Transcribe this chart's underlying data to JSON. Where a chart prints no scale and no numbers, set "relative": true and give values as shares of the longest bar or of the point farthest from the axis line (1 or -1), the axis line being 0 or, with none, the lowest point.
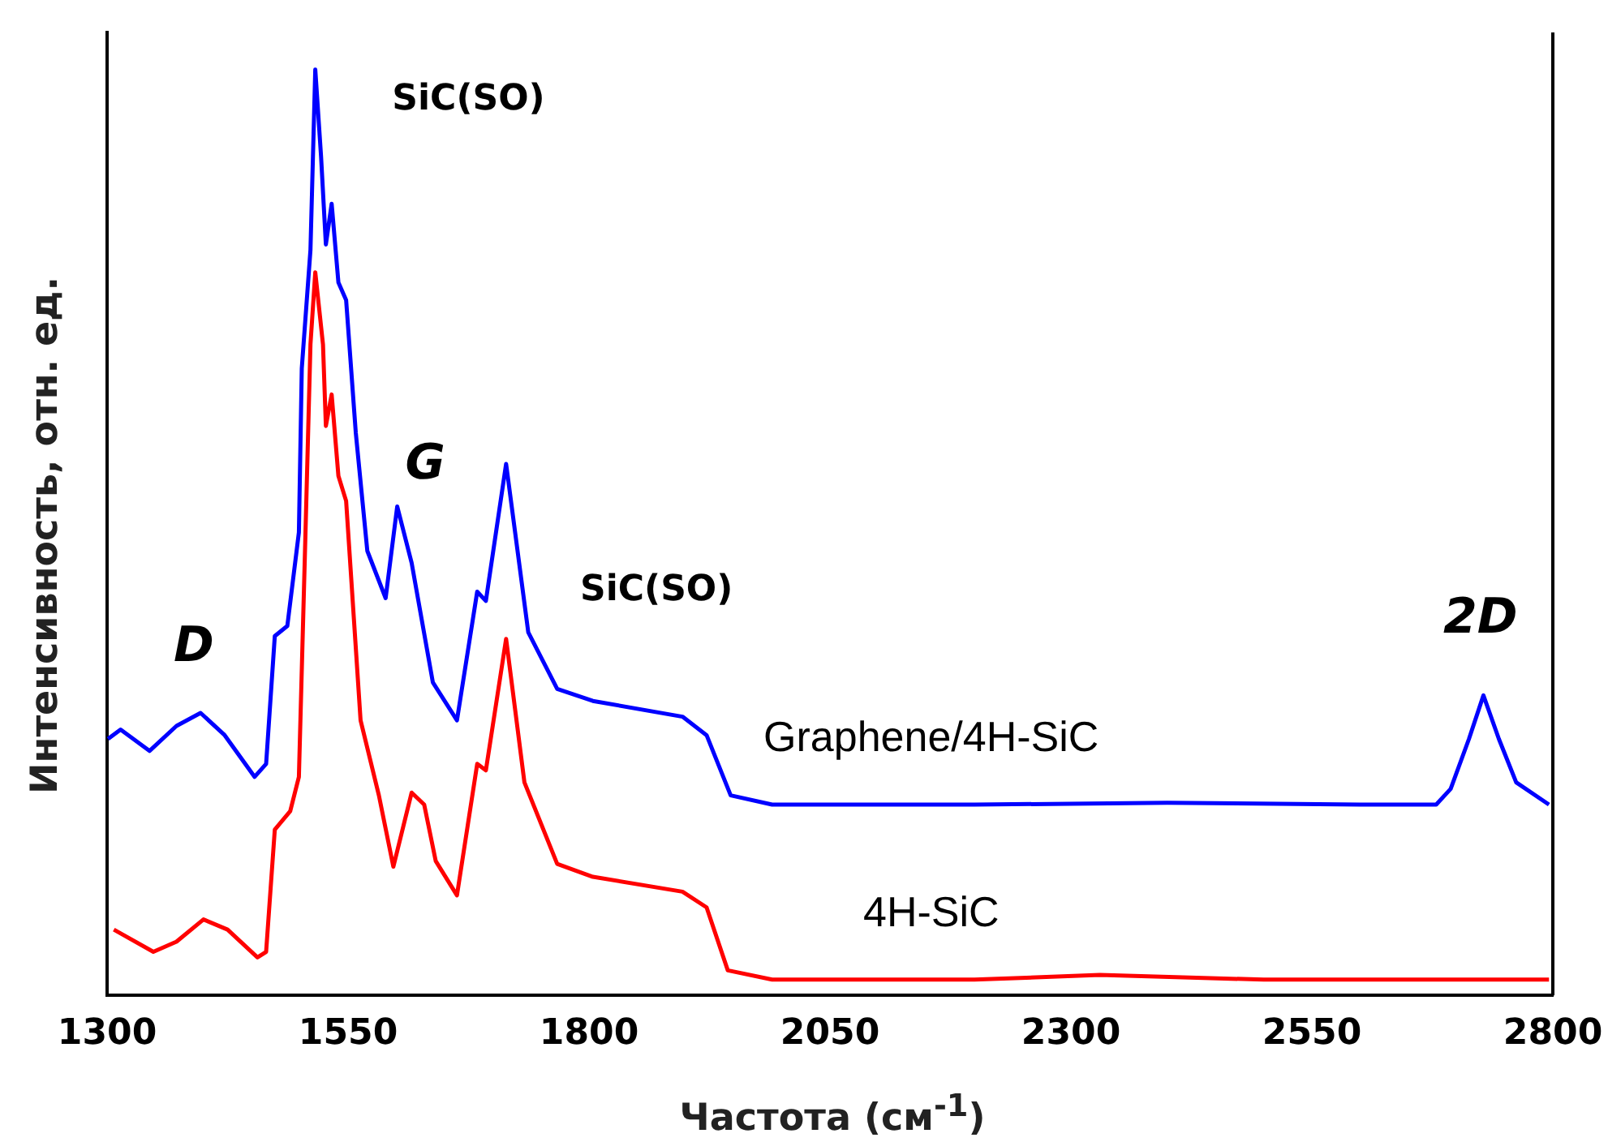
{
  "chart_data": {
    "type": "line",
    "relative": true,
    "xlabel": "Частота (см$^{-1}$)",
    "ylabel": "Интенсивность, отн. ед.",
    "xlim": [
      1300,
      2800
    ],
    "xticks": [
      1300,
      1550,
      1800,
      2050,
      2300,
      2550,
      2800
    ],
    "grid": false,
    "legend": false,
    "marker": "none",
    "line_style": "solid",
    "series": [
      {
        "name": "Graphene/4H-SiC",
        "color": "#0000ff",
        "x": [
          1301,
          1314,
          1344,
          1372,
          1397,
          1422,
          1453,
          1465,
          1474,
          1487,
          1499,
          1502,
          1511,
          1516,
          1522,
          1527,
          1533,
          1540,
          1548,
          1558,
          1570,
          1589,
          1601,
          1616,
          1638,
          1663,
          1684,
          1693,
          1714,
          1737,
          1767,
          1804,
          1897,
          1922,
          1947,
          1990,
          2200,
          2400,
          2600,
          2679,
          2694,
          2713,
          2728,
          2744,
          2762,
          2796
        ],
        "values": [
          0.277,
          0.287,
          0.264,
          0.291,
          0.305,
          0.281,
          0.236,
          0.25,
          0.388,
          0.399,
          0.5,
          0.677,
          0.805,
          1.0,
          0.906,
          0.811,
          0.855,
          0.77,
          0.751,
          0.608,
          0.48,
          0.429,
          0.528,
          0.467,
          0.338,
          0.297,
          0.436,
          0.426,
          0.574,
          0.392,
          0.331,
          0.318,
          0.301,
          0.281,
          0.216,
          0.206,
          0.206,
          0.208,
          0.206,
          0.206,
          0.223,
          0.277,
          0.324,
          0.277,
          0.23,
          0.206
        ]
      },
      {
        "name": "4H-SiC",
        "color": "#ff0000",
        "x": [
          1307,
          1348,
          1372,
          1400,
          1425,
          1456,
          1465,
          1474,
          1490,
          1499,
          1505,
          1511,
          1516,
          1524,
          1527,
          1533,
          1540,
          1548,
          1563,
          1582,
          1597,
          1616,
          1629,
          1641,
          1663,
          1684,
          1693,
          1714,
          1733,
          1767,
          1804,
          1897,
          1922,
          1944,
          1990,
          2200,
          2330,
          2500,
          2796
        ],
        "values": [
          0.071,
          0.047,
          0.058,
          0.082,
          0.071,
          0.041,
          0.047,
          0.179,
          0.199,
          0.236,
          0.467,
          0.703,
          0.781,
          0.703,
          0.615,
          0.649,
          0.561,
          0.534,
          0.297,
          0.216,
          0.139,
          0.219,
          0.206,
          0.145,
          0.108,
          0.25,
          0.243,
          0.385,
          0.23,
          0.142,
          0.128,
          0.112,
          0.095,
          0.027,
          0.017,
          0.017,
          0.022,
          0.017,
          0.017
        ]
      }
    ],
    "annotations": [
      "D",
      "SiC(SO)",
      "G",
      "SiC(SO)",
      "2D"
    ]
  }
}
